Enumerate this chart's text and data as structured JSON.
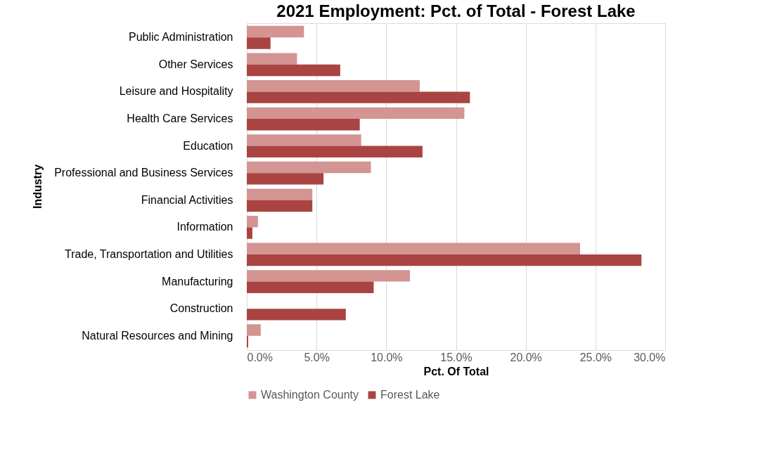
{
  "chart_data": {
    "type": "bar",
    "orientation": "horizontal",
    "title": "2021 Employment:  Pct. of Total - Forest Lake",
    "xlabel": "Pct. Of Total",
    "ylabel": "Industry",
    "categories": [
      "Public Administration",
      "Other Services",
      "Leisure and Hospitality",
      "Health Care Services",
      "Education",
      "Professional and Business Services",
      "Financial Activities",
      "Information",
      "Trade, Transportation and Utilities",
      "Manufacturing",
      "Construction",
      "Natural Resources and Mining"
    ],
    "series": [
      {
        "name": "Washington County",
        "color": "#d39492",
        "values": [
          4.1,
          3.6,
          12.4,
          15.6,
          8.2,
          8.9,
          4.7,
          0.8,
          23.9,
          11.7,
          0,
          1.0
        ]
      },
      {
        "name": "Forest Lake",
        "color": "#a94442",
        "values": [
          1.7,
          6.7,
          16.0,
          8.1,
          12.6,
          5.5,
          4.7,
          0.4,
          28.3,
          9.1,
          7.1,
          0.1
        ]
      }
    ],
    "xlim": [
      0,
      30
    ],
    "xticks": [
      {
        "value": 0,
        "label": "0.0%"
      },
      {
        "value": 5,
        "label": "5.0%"
      },
      {
        "value": 10,
        "label": "10.0%"
      },
      {
        "value": 15,
        "label": "15.0%"
      },
      {
        "value": 20,
        "label": "20.0%"
      },
      {
        "value": 25,
        "label": "25.0%"
      },
      {
        "value": 30,
        "label": "30.0%"
      }
    ],
    "grid": "x",
    "legend": "bottom"
  }
}
